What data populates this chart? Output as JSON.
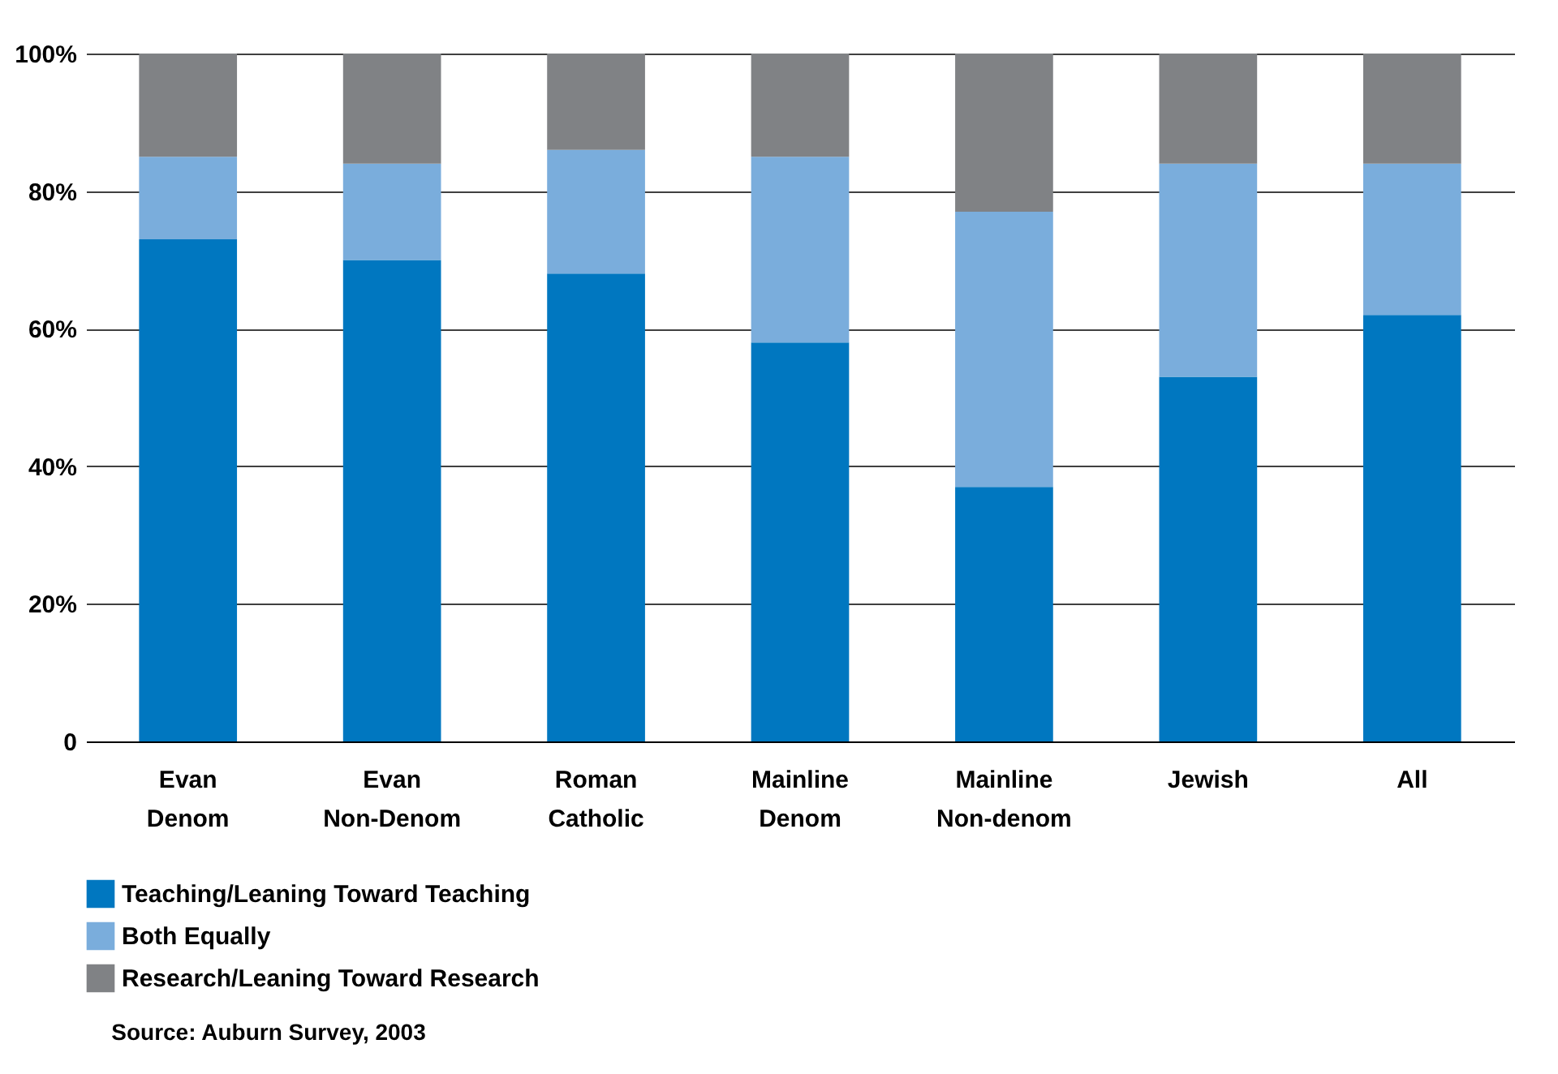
{
  "chart_data": {
    "type": "bar",
    "stacked": true,
    "categories": [
      "Evan Denom",
      "Evan Non-Denom",
      "Roman Catholic",
      "Mainline Denom",
      "Mainline Non-denom",
      "Jewish",
      "All"
    ],
    "series": [
      {
        "name": "Teaching/Leaning Toward Teaching",
        "color": "#0077c0",
        "values": [
          73,
          70,
          68,
          58,
          37,
          53,
          62
        ]
      },
      {
        "name": "Both Equally",
        "color": "#7aaddc",
        "values": [
          12,
          14,
          18,
          27,
          40,
          31,
          22
        ]
      },
      {
        "name": "Research/Leaning Toward Research",
        "color": "#808285",
        "values": [
          15,
          16,
          14,
          15,
          23,
          16,
          16
        ]
      }
    ],
    "ylim": [
      0,
      100
    ],
    "yticks": [
      {
        "value": 0,
        "label": "0"
      },
      {
        "value": 20,
        "label": "20%"
      },
      {
        "value": 40,
        "label": "40%"
      },
      {
        "value": 60,
        "label": "60%"
      },
      {
        "value": 80,
        "label": "80%"
      },
      {
        "value": 100,
        "label": "100%"
      }
    ],
    "grid": "y",
    "legend": "bottom left",
    "annotations": [
      "Source: Auburn Survey, 2003"
    ]
  }
}
